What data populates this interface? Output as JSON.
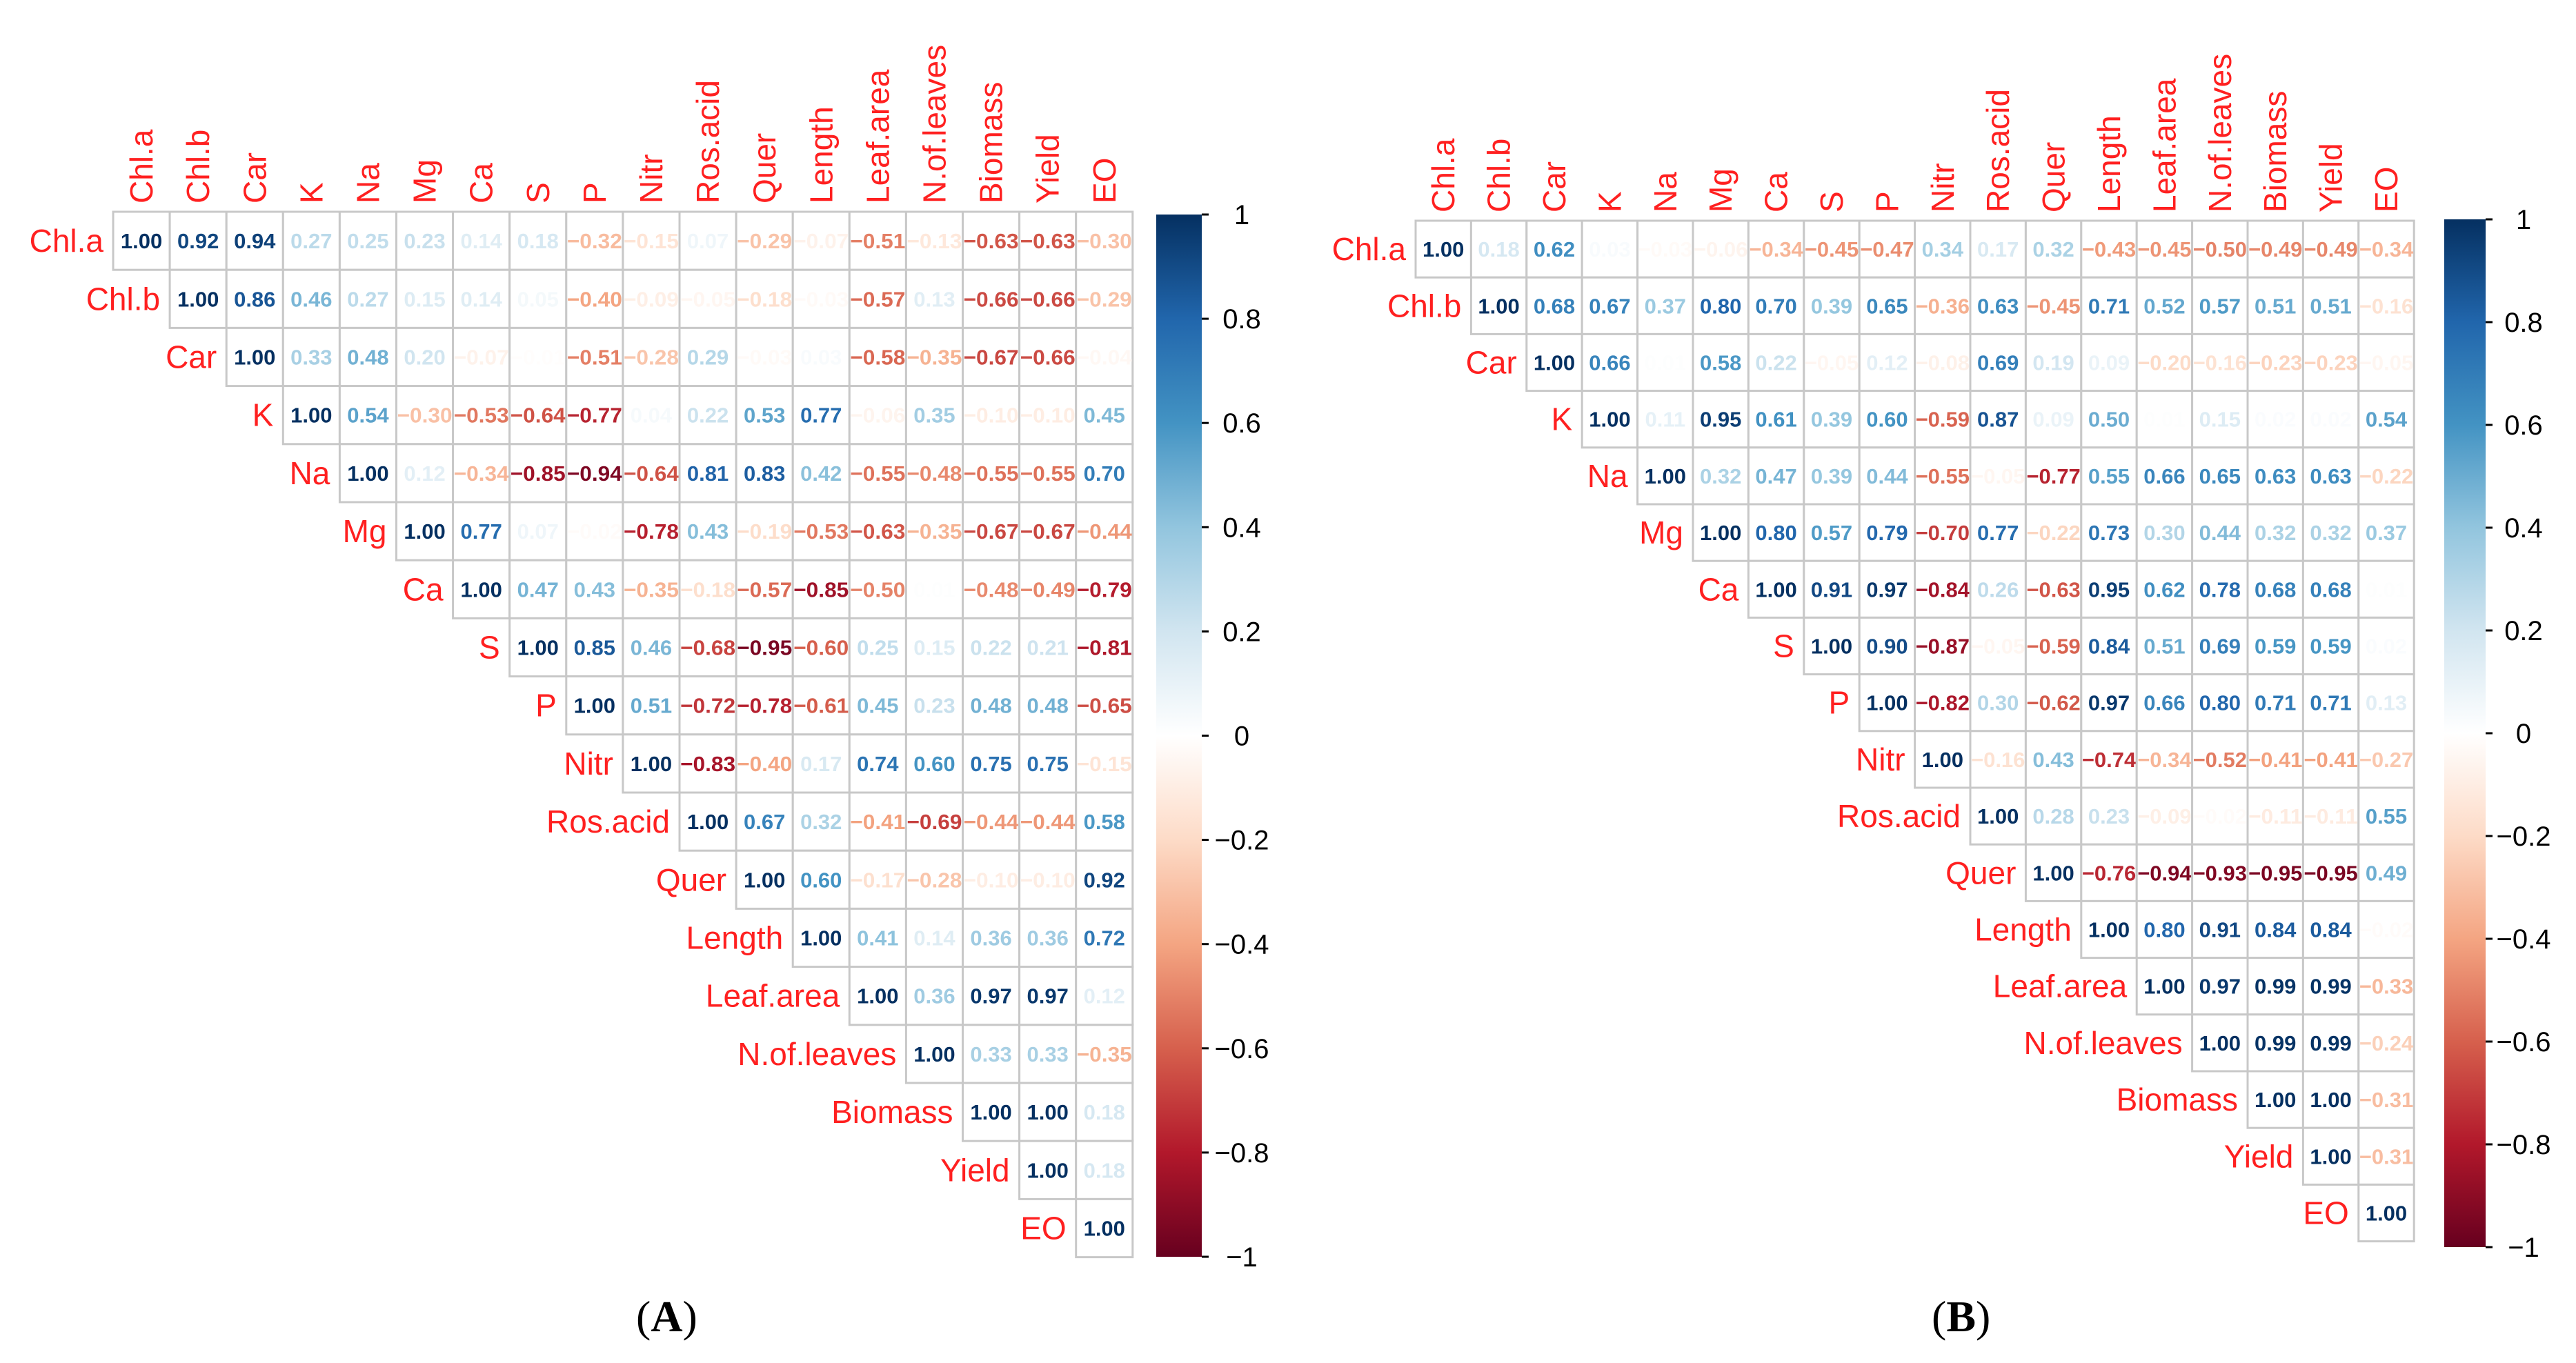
{
  "chart_data": [
    {
      "type": "heatmap",
      "panel_label_open": "(",
      "panel_letter": "A",
      "panel_label_close": ")",
      "variables": [
        "Chl.a",
        "Chl.b",
        "Car",
        "K",
        "Na",
        "Mg",
        "Ca",
        "S",
        "P",
        "Nitr",
        "Ros.acid",
        "Quer",
        "Length",
        "Leaf.area",
        "N.of.leaves",
        "Biomass",
        "Yield",
        "EO"
      ],
      "layout": "upper-triangle",
      "value_range": [
        -1,
        1
      ],
      "matrix_upper_rows": [
        [
          1.0,
          0.92,
          0.94,
          0.27,
          0.25,
          0.23,
          0.14,
          0.18,
          -0.32,
          -0.15,
          0.07,
          -0.29,
          -0.07,
          -0.51,
          -0.13,
          -0.63,
          -0.63,
          -0.3
        ],
        [
          1.0,
          0.86,
          0.46,
          0.27,
          0.15,
          0.14,
          0.05,
          -0.4,
          -0.09,
          -0.05,
          -0.18,
          -0.03,
          -0.57,
          0.13,
          -0.66,
          -0.66,
          -0.29
        ],
        [
          1.0,
          0.33,
          0.48,
          0.2,
          -0.07,
          -0.01,
          -0.51,
          -0.28,
          0.29,
          -0.03,
          0.03,
          -0.58,
          -0.35,
          -0.67,
          -0.66,
          -0.04
        ],
        [
          1.0,
          0.54,
          -0.3,
          -0.53,
          -0.64,
          -0.77,
          0.04,
          0.22,
          0.53,
          0.77,
          -0.06,
          0.35,
          -0.1,
          -0.1,
          0.45
        ],
        [
          1.0,
          0.12,
          -0.34,
          -0.85,
          -0.94,
          -0.64,
          0.81,
          0.83,
          0.42,
          -0.55,
          -0.48,
          -0.55,
          -0.55,
          0.7
        ],
        [
          1.0,
          0.77,
          0.07,
          -0.02,
          -0.78,
          0.43,
          -0.19,
          -0.53,
          -0.63,
          -0.35,
          -0.67,
          -0.67,
          -0.44
        ],
        [
          1.0,
          0.47,
          0.43,
          -0.35,
          -0.18,
          -0.57,
          -0.85,
          -0.5,
          0.01,
          -0.48,
          -0.49,
          -0.79
        ],
        [
          1.0,
          0.85,
          0.46,
          -0.68,
          -0.95,
          -0.6,
          0.25,
          0.15,
          0.22,
          0.21,
          -0.81
        ],
        [
          1.0,
          0.51,
          -0.72,
          -0.78,
          -0.61,
          0.45,
          0.23,
          0.48,
          0.48,
          -0.65
        ],
        [
          1.0,
          -0.83,
          -0.4,
          0.17,
          0.74,
          0.6,
          0.75,
          0.75,
          -0.15
        ],
        [
          1.0,
          0.67,
          0.32,
          -0.41,
          -0.69,
          -0.44,
          -0.44,
          0.58
        ],
        [
          1.0,
          0.6,
          -0.17,
          -0.28,
          -0.1,
          -0.1,
          0.92
        ],
        [
          1.0,
          0.41,
          0.14,
          0.36,
          0.36,
          0.72
        ],
        [
          1.0,
          0.36,
          0.97,
          0.97,
          0.12
        ],
        [
          1.0,
          0.33,
          0.33,
          -0.35
        ],
        [
          1.0,
          1.0,
          0.18
        ],
        [
          1.0,
          0.18
        ],
        [
          1.0
        ]
      ],
      "colorbar_ticks": [
        1,
        0.8,
        0.6,
        0.4,
        0.2,
        0,
        -0.2,
        -0.4,
        -0.6,
        -0.8,
        -1
      ]
    },
    {
      "type": "heatmap",
      "panel_label_open": "(",
      "panel_letter": "B",
      "panel_label_close": ")",
      "variables": [
        "Chl.a",
        "Chl.b",
        "Car",
        "K",
        "Na",
        "Mg",
        "Ca",
        "S",
        "P",
        "Nitr",
        "Ros.acid",
        "Quer",
        "Length",
        "Leaf.area",
        "N.of.leaves",
        "Biomass",
        "Yield",
        "EO"
      ],
      "layout": "upper-triangle",
      "value_range": [
        -1,
        1
      ],
      "matrix_upper_rows": [
        [
          1.0,
          0.18,
          0.62,
          0.03,
          -0.03,
          -0.06,
          -0.34,
          -0.45,
          -0.47,
          0.34,
          0.17,
          0.32,
          -0.43,
          -0.45,
          -0.5,
          -0.49,
          -0.49,
          -0.34
        ],
        [
          1.0,
          0.68,
          0.67,
          0.37,
          0.8,
          0.7,
          0.39,
          0.65,
          -0.36,
          0.63,
          -0.45,
          0.71,
          0.52,
          0.57,
          0.51,
          0.51,
          -0.16
        ],
        [
          1.0,
          0.66,
          0.01,
          0.58,
          0.22,
          -0.05,
          0.12,
          -0.08,
          0.69,
          0.19,
          0.09,
          -0.2,
          -0.16,
          -0.23,
          -0.23,
          -0.05
        ],
        [
          1.0,
          0.11,
          0.95,
          0.61,
          0.39,
          0.6,
          -0.59,
          0.87,
          0.09,
          0.5,
          0.01,
          0.15,
          0.02,
          0.02,
          0.54
        ],
        [
          1.0,
          0.32,
          0.47,
          0.39,
          0.44,
          -0.55,
          -0.05,
          -0.77,
          0.55,
          0.66,
          0.65,
          0.63,
          0.63,
          -0.22
        ],
        [
          1.0,
          0.8,
          0.57,
          0.79,
          -0.7,
          0.77,
          -0.22,
          0.73,
          0.3,
          0.44,
          0.32,
          0.32,
          0.37
        ],
        [
          1.0,
          0.91,
          0.97,
          -0.84,
          0.26,
          -0.63,
          0.95,
          0.62,
          0.78,
          0.68,
          0.68,
          0.01
        ],
        [
          1.0,
          0.9,
          -0.87,
          -0.05,
          -0.59,
          0.84,
          0.51,
          0.69,
          0.59,
          0.59,
          0.02
        ],
        [
          1.0,
          -0.82,
          0.3,
          -0.62,
          0.97,
          0.66,
          0.8,
          0.71,
          0.71,
          0.13
        ],
        [
          1.0,
          -0.16,
          0.43,
          -0.74,
          -0.34,
          -0.52,
          -0.41,
          -0.41,
          -0.27
        ],
        [
          1.0,
          0.28,
          0.23,
          -0.09,
          -0.02,
          -0.11,
          -0.11,
          0.55
        ],
        [
          1.0,
          -0.76,
          -0.94,
          -0.93,
          -0.95,
          -0.95,
          0.49
        ],
        [
          1.0,
          0.8,
          0.91,
          0.84,
          0.84,
          -0.02
        ],
        [
          1.0,
          0.97,
          0.99,
          0.99,
          -0.33
        ],
        [
          1.0,
          0.99,
          0.99,
          -0.24
        ],
        [
          1.0,
          1.0,
          -0.31
        ],
        [
          1.0,
          -0.31
        ],
        [
          1.0
        ]
      ],
      "colorbar_ticks": [
        1,
        0.8,
        0.6,
        0.4,
        0.2,
        0,
        -0.2,
        -0.4,
        -0.6,
        -0.8,
        -1
      ]
    }
  ],
  "colors": {
    "label_color": "#FF2020",
    "grid_line": "#C8C8C8",
    "palette_stops": [
      "#67001F",
      "#B2182B",
      "#D6604D",
      "#F4A582",
      "#FDDBC7",
      "#FFFFFF",
      "#D1E5F0",
      "#92C5DE",
      "#4393C3",
      "#2166AC",
      "#053061"
    ]
  }
}
